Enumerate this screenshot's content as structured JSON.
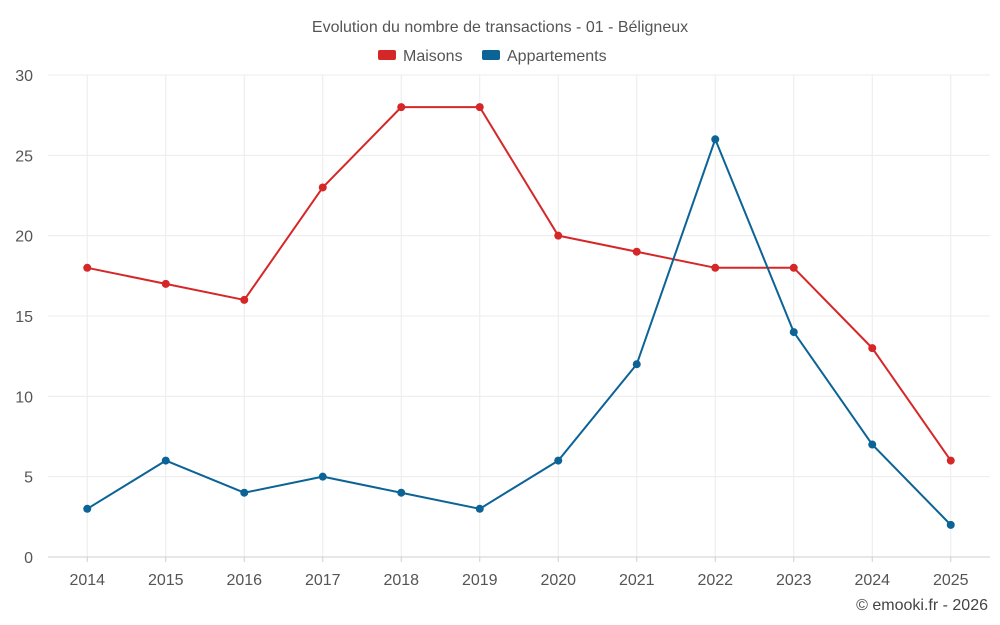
{
  "chart_data": {
    "type": "line",
    "title": "Evolution du nombre de transactions - 01 - Béligneux",
    "categories": [
      "2014",
      "2015",
      "2016",
      "2017",
      "2018",
      "2019",
      "2020",
      "2021",
      "2022",
      "2023",
      "2024",
      "2025"
    ],
    "series": [
      {
        "name": "Maisons",
        "color": "#d62728",
        "values": [
          18,
          17,
          16,
          23,
          28,
          28,
          20,
          19,
          18,
          18,
          13,
          6
        ]
      },
      {
        "name": "Appartements",
        "color": "#0b6396",
        "values": [
          3,
          6,
          4,
          5,
          4,
          3,
          6,
          12,
          26,
          14,
          7,
          2
        ]
      }
    ],
    "ylim": [
      0,
      30
    ],
    "yticks": [
      0,
      5,
      10,
      15,
      20,
      25,
      30
    ],
    "xlabel": "",
    "ylabel": "",
    "grid": true,
    "legend_position": "top-center"
  },
  "credit": "© emooki.fr - 2026"
}
